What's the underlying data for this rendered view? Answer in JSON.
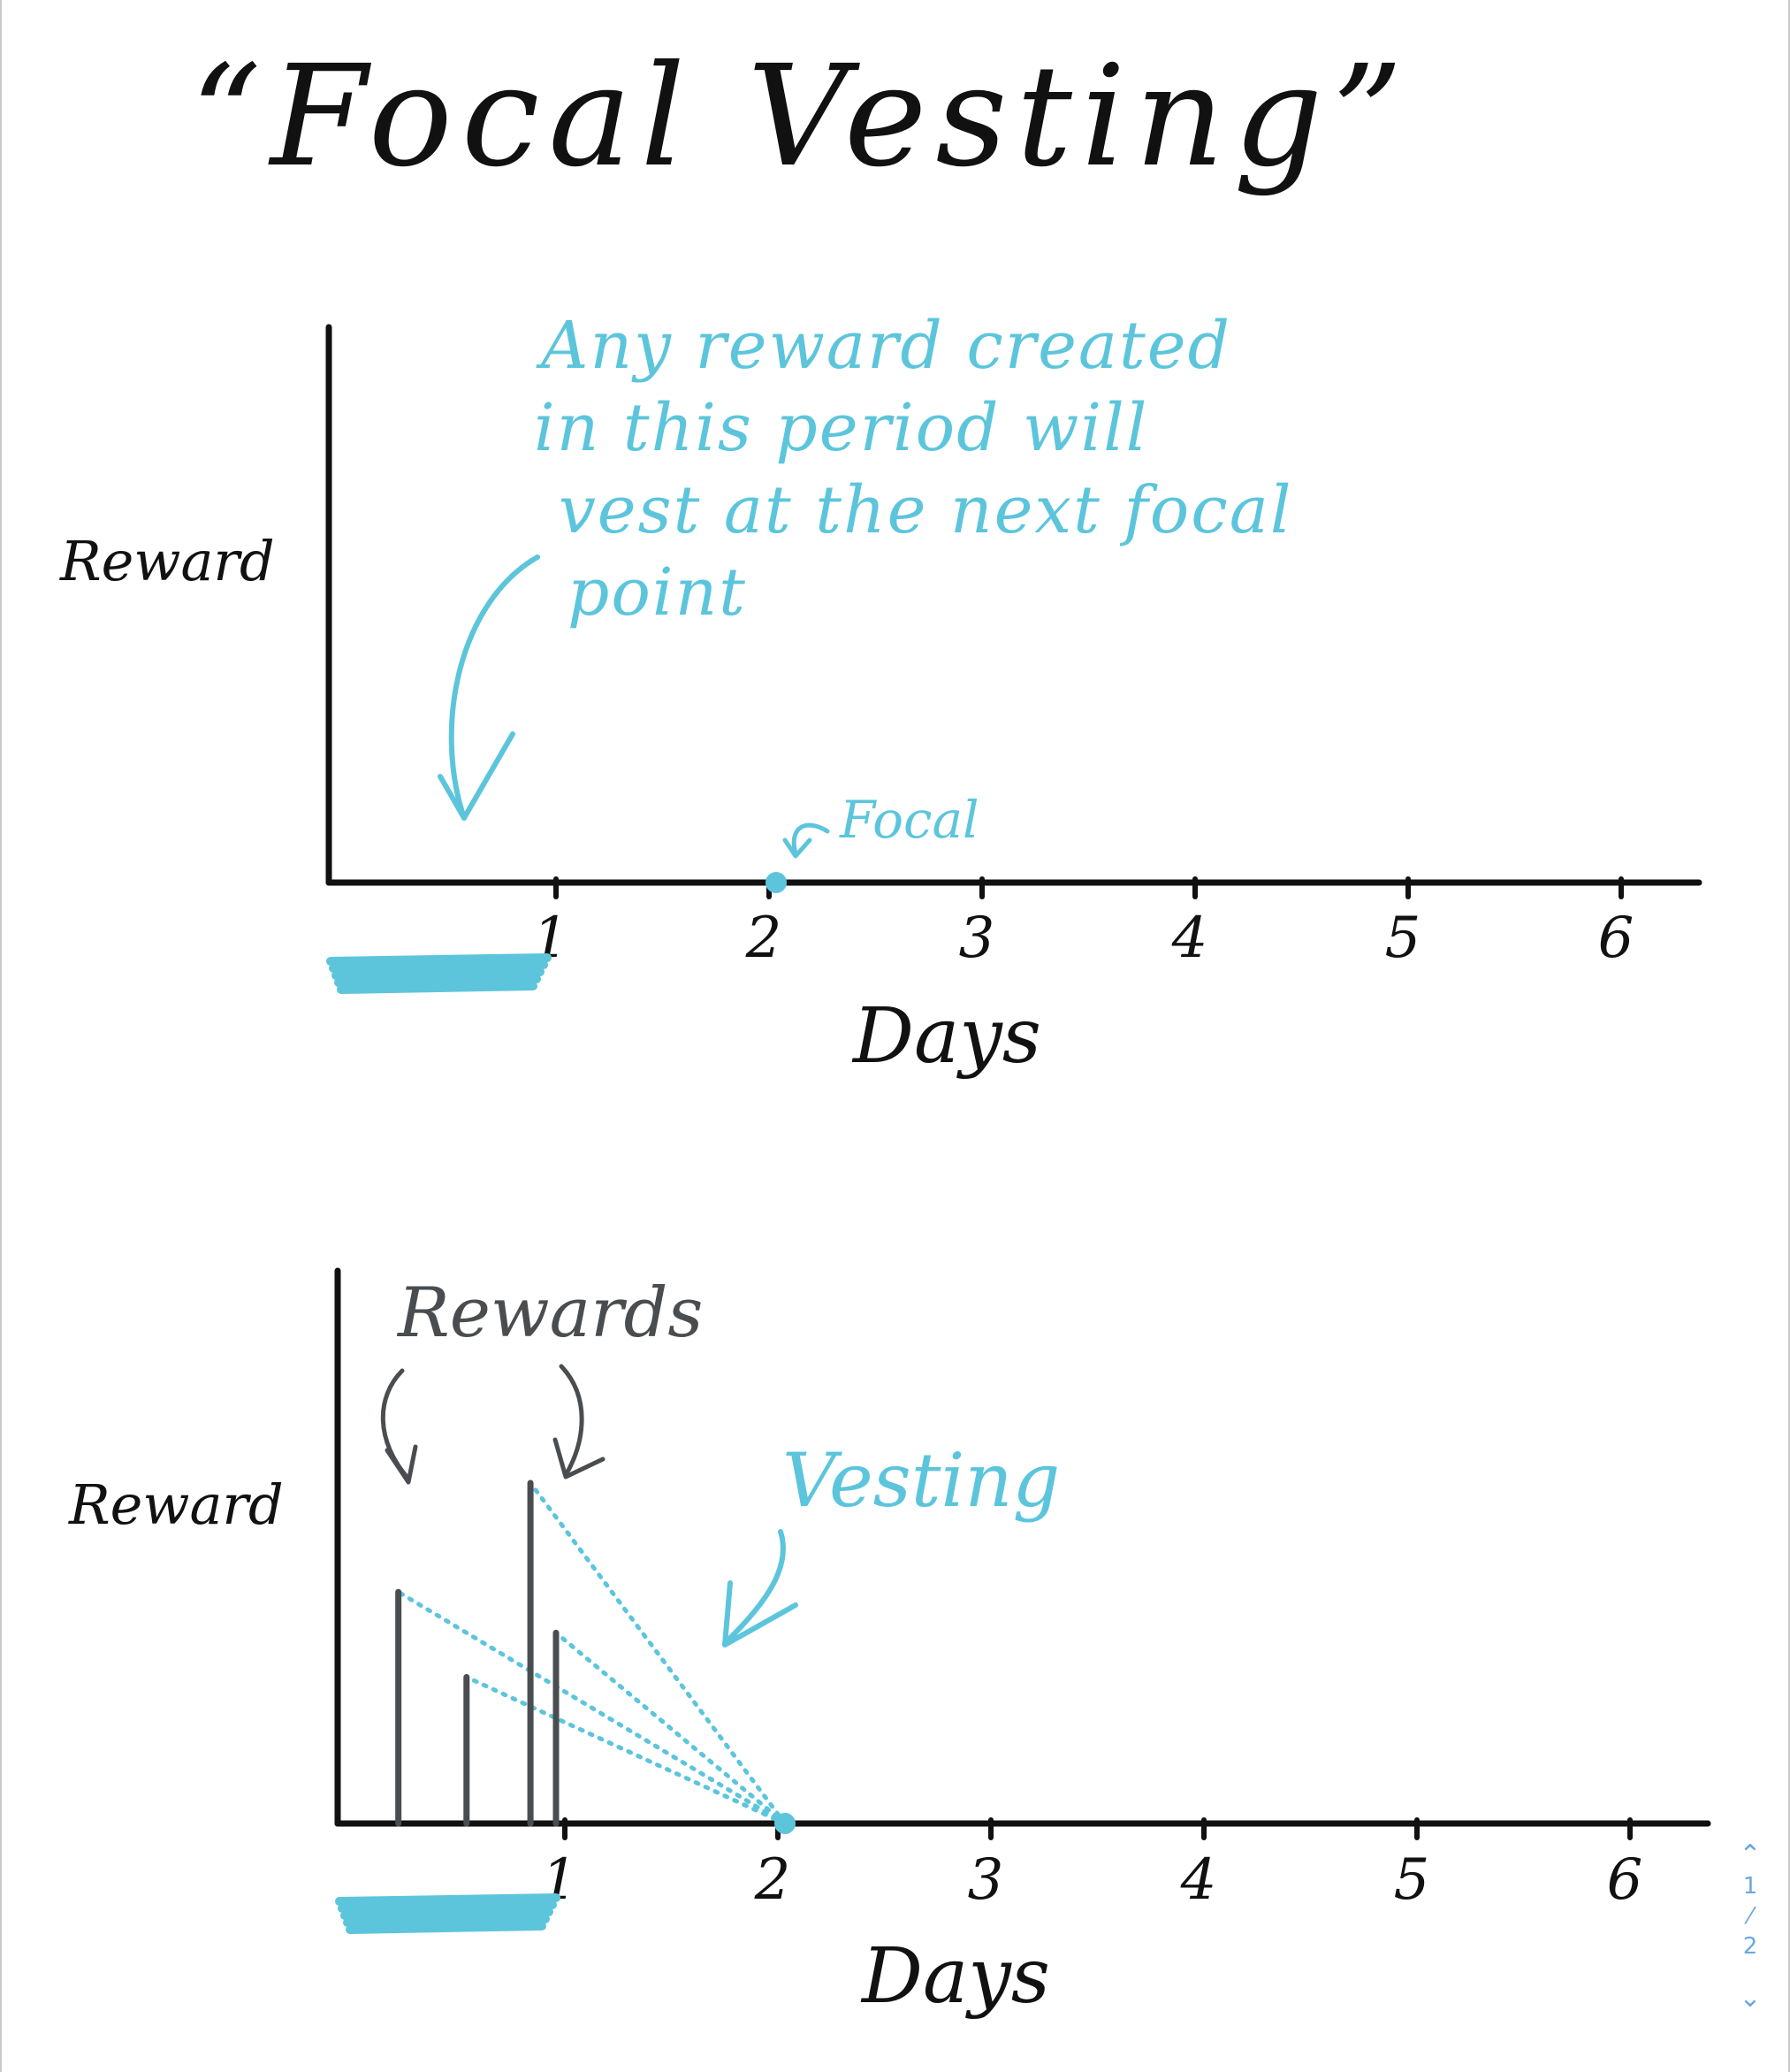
{
  "title": "“Focal Vesting”",
  "colors": {
    "ink": "#111111",
    "accent": "#5cc5dc",
    "reward_bar": "#4a4d50"
  },
  "chart_data": [
    {
      "type": "line",
      "xlabel": "Days",
      "ylabel": "Reward",
      "x_ticks": [
        "1",
        "2",
        "3",
        "4",
        "5",
        "6"
      ],
      "xlim": [
        0,
        6.25
      ],
      "highlight_range": [
        0,
        1
      ],
      "focal_point": {
        "x": 2,
        "label": "Focal"
      },
      "annotation": [
        "Any reward created",
        "in this period will",
        "vest at the next focal",
        "point"
      ]
    },
    {
      "type": "bar",
      "xlabel": "Days",
      "ylabel": "Reward",
      "x_ticks": [
        "1",
        "2",
        "3",
        "4",
        "5",
        "6"
      ],
      "xlim": [
        0,
        6.25
      ],
      "highlight_range": [
        0,
        1
      ],
      "focal_point": {
        "x": 2
      },
      "rewards": [
        {
          "x": 0.26,
          "value": 0.68
        },
        {
          "x": 0.58,
          "value": 0.43
        },
        {
          "x": 0.88,
          "value": 1.0
        },
        {
          "x": 1.0,
          "value": 0.56
        }
      ],
      "rewards_label": "Rewards",
      "vesting_label": "Vesting"
    }
  ],
  "pager": {
    "current": "1",
    "total": "2"
  }
}
